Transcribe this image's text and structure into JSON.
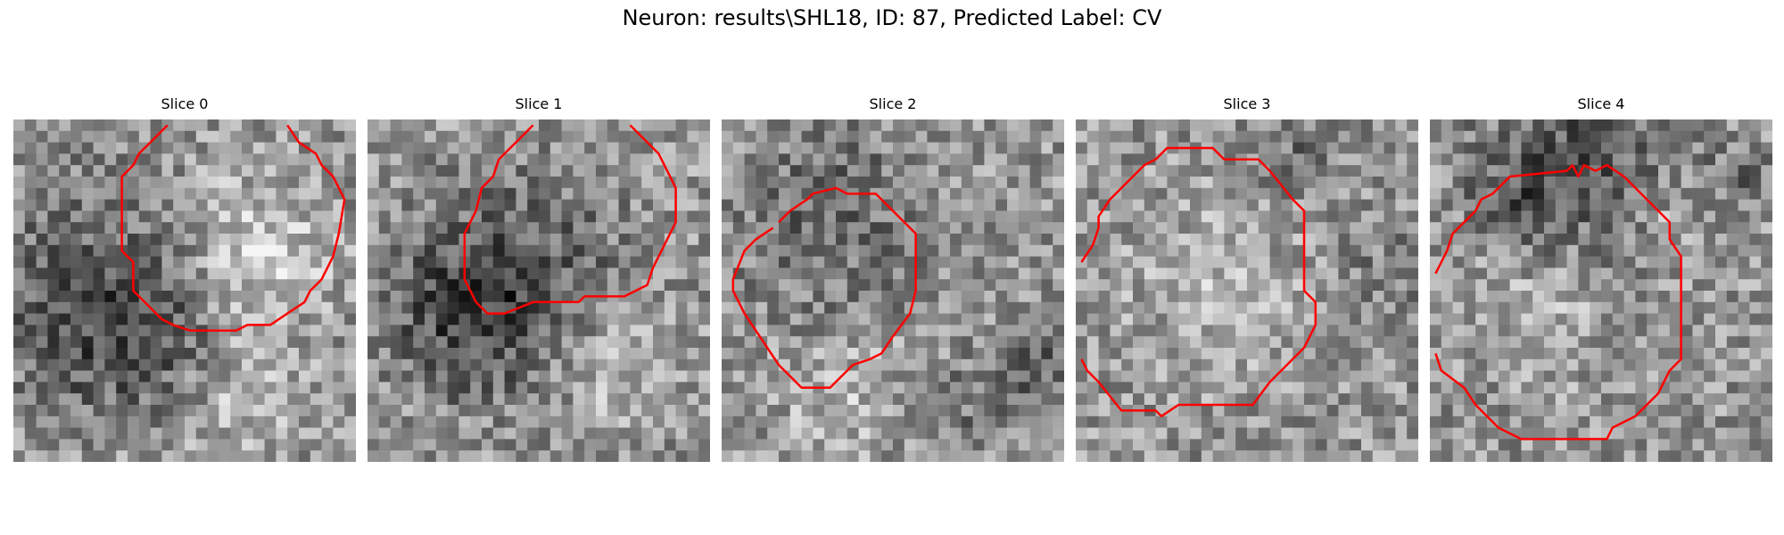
{
  "figure": {
    "title": "Neuron: results\\SHL18, ID: 87, Predicted Label: CV"
  },
  "colors": {
    "contour": "#ff0000",
    "background": "#ffffff"
  },
  "colormap": "gray",
  "grid_size": 30,
  "panels": [
    {
      "title": "Slice 0"
    },
    {
      "title": "Slice 1"
    },
    {
      "title": "Slice 2"
    },
    {
      "title": "Slice 3"
    },
    {
      "title": "Slice 4"
    }
  ]
}
